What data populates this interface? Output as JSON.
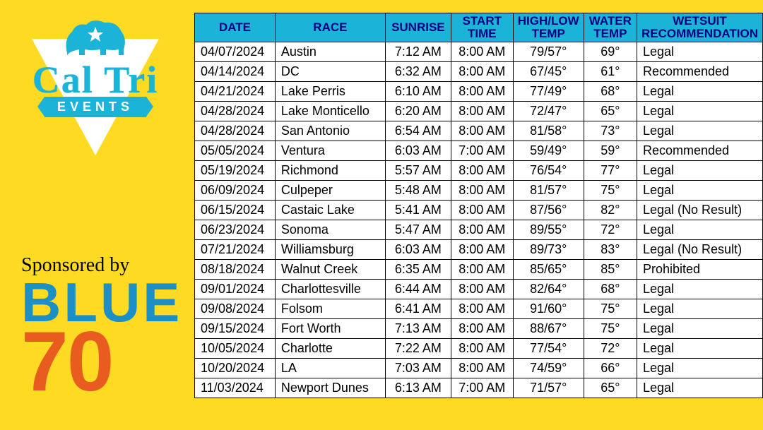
{
  "colors": {
    "page_bg": "#ffda22",
    "header_bg": "#1bb3d8",
    "header_text": "#000080",
    "cell_bg": "#ffffff",
    "border": "#000000",
    "logo_cyan": "#1bb3d8",
    "logo_white": "#ffffff",
    "sponsor_blue": "#1b8fc6",
    "sponsor_orange": "#e85c1f"
  },
  "logo": {
    "brand_line1": "Cal Tri",
    "brand_line2": "EVENTS"
  },
  "sponsor": {
    "label": "Sponsored by",
    "line1": "BLUE",
    "line2": "70"
  },
  "table": {
    "columns": [
      {
        "label": "DATE",
        "align": "center"
      },
      {
        "label": "RACE",
        "align": "left"
      },
      {
        "label": "SUNRISE",
        "align": "center"
      },
      {
        "label": "START\nTIME",
        "align": "center"
      },
      {
        "label": "HIGH/LOW\nTEMP",
        "align": "center"
      },
      {
        "label": "WATER\nTEMP",
        "align": "center"
      },
      {
        "label": "WETSUIT\nRECOMMENDATION",
        "align": "left"
      }
    ],
    "rows": [
      [
        "04/07/2024",
        "Austin",
        "7:12 AM",
        "8:00 AM",
        "79/57°",
        "69°",
        "Legal"
      ],
      [
        "04/14/2024",
        "DC",
        "6:32 AM",
        "8:00 AM",
        "67/45°",
        "61°",
        "Recommended"
      ],
      [
        "04/21/2024",
        "Lake Perris",
        "6:10 AM",
        "8:00 AM",
        "77/49°",
        "68°",
        "Legal"
      ],
      [
        "04/28/2024",
        "Lake Monticello",
        "6:20 AM",
        "8:00 AM",
        "72/47°",
        "65°",
        "Legal"
      ],
      [
        "04/28/2024",
        "San Antonio",
        "6:54 AM",
        "8:00 AM",
        "81/58°",
        "73°",
        "Legal"
      ],
      [
        "05/05/2024",
        "Ventura",
        "6:03 AM",
        "7:00 AM",
        "59/49°",
        "59°",
        "Recommended"
      ],
      [
        "05/19/2024",
        "Richmond",
        "5:57 AM",
        "8:00 AM",
        "76/54°",
        "77°",
        "Legal"
      ],
      [
        "06/09/2024",
        "Culpeper",
        "5:48 AM",
        "8:00 AM",
        "81/57°",
        "75°",
        "Legal"
      ],
      [
        "06/15/2024",
        "Castaic Lake",
        "5:41 AM",
        "8:00 AM",
        "87/56°",
        "82°",
        "Legal (No Result)"
      ],
      [
        "06/23/2024",
        "Sonoma",
        "5:47 AM",
        "8:00 AM",
        "89/55°",
        "72°",
        "Legal"
      ],
      [
        "07/21/2024",
        "Williamsburg",
        "6:03 AM",
        "8:00 AM",
        "89/73°",
        "83°",
        "Legal (No Result)"
      ],
      [
        "08/18/2024",
        "Walnut Creek",
        "6:35 AM",
        "8:00 AM",
        "85/65°",
        "85°",
        "Prohibited"
      ],
      [
        "09/01/2024",
        "Charlottesville",
        "6:44 AM",
        "8:00 AM",
        "82/64°",
        "68°",
        "Legal"
      ],
      [
        "09/08/2024",
        "Folsom",
        "6:41 AM",
        "8:00 AM",
        "91/60°",
        "75°",
        "Legal"
      ],
      [
        "09/15/2024",
        "Fort Worth",
        "7:13 AM",
        "8:00 AM",
        "88/67°",
        "75°",
        "Legal"
      ],
      [
        "10/05/2024",
        "Charlotte",
        "7:22 AM",
        "8:00 AM",
        "77/54°",
        "72°",
        "Legal"
      ],
      [
        "10/20/2024",
        "LA",
        "7:03 AM",
        "8:00 AM",
        "74/59°",
        "66°",
        "Legal"
      ],
      [
        "11/03/2024",
        "Newport Dunes",
        "6:13 AM",
        "7:00 AM",
        "71/57°",
        "65°",
        "Legal"
      ]
    ]
  }
}
